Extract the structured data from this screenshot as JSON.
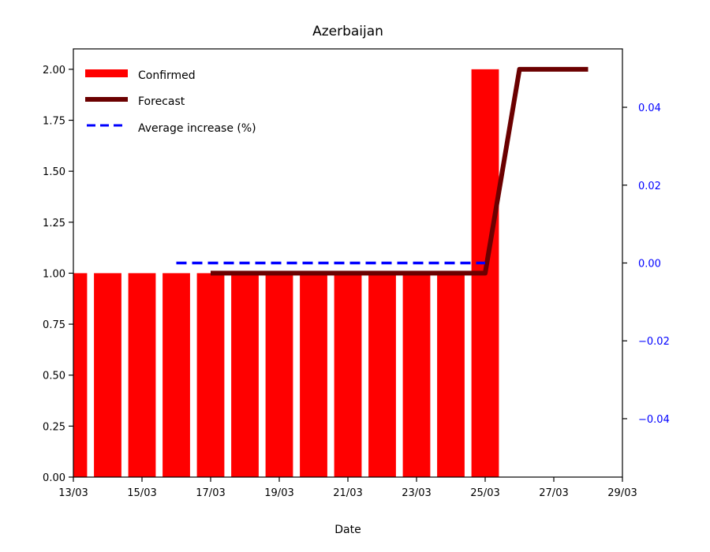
{
  "chart_data": {
    "type": "bar",
    "title": "Azerbaijan",
    "xlabel": "Date",
    "x_ticks": [
      "13/03",
      "15/03",
      "17/03",
      "19/03",
      "21/03",
      "23/03",
      "25/03",
      "27/03",
      "29/03"
    ],
    "x_range": [
      "13/03",
      "29/03"
    ],
    "y_left": {
      "range": [
        0,
        2.1
      ],
      "ticks": [
        "0.00",
        "0.25",
        "0.50",
        "0.75",
        "1.00",
        "1.25",
        "1.50",
        "1.75",
        "2.00"
      ]
    },
    "y_right": {
      "range": [
        -0.055,
        0.055
      ],
      "ticks": [
        "−0.04",
        "−0.02",
        "0.00",
        "0.02",
        "0.04"
      ],
      "color": "#0000ff"
    },
    "series": [
      {
        "name": "Confirmed",
        "kind": "bar",
        "axis": "left",
        "color": "#ff0000",
        "points": [
          {
            "date": "13/03",
            "value": 1
          },
          {
            "date": "14/03",
            "value": 1
          },
          {
            "date": "15/03",
            "value": 1
          },
          {
            "date": "16/03",
            "value": 1
          },
          {
            "date": "17/03",
            "value": 1
          },
          {
            "date": "18/03",
            "value": 1
          },
          {
            "date": "19/03",
            "value": 1
          },
          {
            "date": "20/03",
            "value": 1
          },
          {
            "date": "21/03",
            "value": 1
          },
          {
            "date": "22/03",
            "value": 1
          },
          {
            "date": "23/03",
            "value": 1
          },
          {
            "date": "24/03",
            "value": 1
          },
          {
            "date": "25/03",
            "value": 2
          }
        ]
      },
      {
        "name": "Forecast",
        "kind": "line",
        "axis": "left",
        "color": "#6b0000",
        "points": [
          {
            "date": "17/03",
            "value": 1
          },
          {
            "date": "25/03",
            "value": 1
          },
          {
            "date": "26/03",
            "value": 2
          },
          {
            "date": "28/03",
            "value": 2
          }
        ]
      },
      {
        "name": "Average increase (%)",
        "kind": "dashed-line",
        "axis": "right",
        "color": "#0000ff",
        "points": [
          {
            "date": "16/03",
            "value": 0
          },
          {
            "date": "25/03",
            "value": 0
          }
        ]
      }
    ],
    "legend_position": "top-left",
    "grid": false
  }
}
